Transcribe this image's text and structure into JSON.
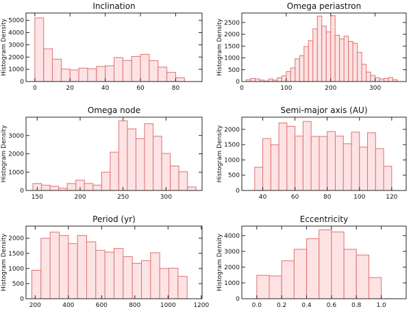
{
  "colors": {
    "bar_fill": "#fde3e3",
    "bar_edge": "#e07070"
  },
  "chart_data": [
    {
      "type": "bar",
      "title": "Inclination",
      "ylabel": "Histogram Density",
      "xlim": [
        -5,
        95
      ],
      "ylim": [
        0,
        5600
      ],
      "xticks": [
        0,
        20,
        40,
        60,
        80
      ],
      "yticks": [
        0,
        1000,
        2000,
        3000,
        4000,
        5000
      ],
      "bin_width": 5,
      "bin_starts": [
        0,
        5,
        10,
        15,
        20,
        25,
        30,
        35,
        40,
        45,
        50,
        55,
        60,
        65,
        70,
        75,
        80
      ],
      "values": [
        5200,
        2680,
        1830,
        1020,
        950,
        1100,
        1040,
        1230,
        1290,
        1960,
        1720,
        2050,
        2220,
        1720,
        1180,
        750,
        300
      ]
    },
    {
      "type": "bar",
      "title": "Omega periastron",
      "ylabel": "Histogram Density",
      "xlim": [
        0,
        370
      ],
      "ylim": [
        0,
        2900
      ],
      "xticks": [
        0,
        100,
        200,
        300
      ],
      "yticks": [
        0,
        500,
        1000,
        1500,
        2000,
        2500
      ],
      "bin_width": 10,
      "bin_starts": [
        10,
        20,
        30,
        40,
        50,
        60,
        70,
        80,
        90,
        100,
        110,
        120,
        130,
        140,
        150,
        160,
        170,
        180,
        190,
        200,
        210,
        220,
        230,
        240,
        250,
        260,
        270,
        280,
        290,
        300,
        310,
        320,
        330,
        340
      ],
      "values": [
        80,
        130,
        110,
        60,
        20,
        110,
        60,
        160,
        240,
        420,
        580,
        960,
        1100,
        1480,
        1730,
        2230,
        2770,
        2350,
        2100,
        2790,
        1960,
        1800,
        1920,
        1700,
        1620,
        1240,
        730,
        400,
        260,
        160,
        110,
        130,
        170,
        80
      ]
    },
    {
      "type": "bar",
      "title": "Omega node",
      "ylabel": "Histogram Density",
      "xlim": [
        137,
        342
      ],
      "ylim": [
        0,
        4000
      ],
      "xticks": [
        150,
        200,
        250,
        300
      ],
      "yticks": [
        0,
        1000,
        2000,
        3000
      ],
      "bin_width": 10,
      "bin_starts": [
        145,
        155,
        165,
        175,
        185,
        195,
        205,
        215,
        225,
        235,
        245,
        255,
        265,
        275,
        285,
        295,
        305,
        315,
        325
      ],
      "values": [
        380,
        290,
        230,
        120,
        380,
        560,
        380,
        290,
        1000,
        2090,
        3800,
        3360,
        2830,
        3640,
        2960,
        2020,
        1340,
        1020,
        190
      ]
    },
    {
      "type": "bar",
      "title": "Semi-major axis (AU)",
      "ylabel": "Histogram Density",
      "xlim": [
        27,
        129
      ],
      "ylim": [
        0,
        2400
      ],
      "xticks": [
        40,
        60,
        80,
        100,
        120
      ],
      "yticks": [
        0,
        500,
        1000,
        1500,
        2000
      ],
      "bin_width": 5,
      "bin_starts": [
        35,
        40,
        45,
        50,
        55,
        60,
        65,
        70,
        75,
        80,
        85,
        90,
        95,
        100,
        105,
        110,
        115
      ],
      "values": [
        760,
        1700,
        1500,
        2210,
        2100,
        1780,
        2260,
        1770,
        1770,
        1930,
        1780,
        1530,
        1910,
        1420,
        1890,
        1370,
        790
      ]
    },
    {
      "type": "bar",
      "title": "Period (yr)",
      "ylabel": "Histogram Density",
      "xlim": [
        145,
        1205
      ],
      "ylim": [
        0,
        2400
      ],
      "xticks": [
        200,
        400,
        600,
        800,
        1000,
        1200
      ],
      "yticks": [
        0,
        500,
        1000,
        1500,
        2000
      ],
      "bin_width": 55,
      "bin_starts": [
        180,
        235,
        290,
        345,
        400,
        455,
        510,
        565,
        620,
        675,
        730,
        785,
        840,
        895,
        950,
        1005,
        1060
      ],
      "values": [
        940,
        2000,
        2200,
        2090,
        1820,
        2090,
        1880,
        1600,
        1540,
        1660,
        1390,
        1170,
        1260,
        1520,
        1000,
        1010,
        740
      ]
    },
    {
      "type": "bar",
      "title": "Eccentricity",
      "ylabel": "Histogram Density",
      "xlim": [
        -0.12,
        1.2
      ],
      "ylim": [
        0,
        4600
      ],
      "xticks": [
        0.0,
        0.2,
        0.4,
        0.6,
        0.8,
        1.0
      ],
      "xtick_labels": [
        "0.0",
        "0.2",
        "0.4",
        "0.6",
        "0.8",
        "1.0"
      ],
      "yticks": [
        0,
        1000,
        2000,
        3000,
        4000
      ],
      "bin_width": 0.1,
      "bin_starts": [
        0.0,
        0.1,
        0.2,
        0.3,
        0.4,
        0.5,
        0.6,
        0.7,
        0.8,
        0.9
      ],
      "values": [
        1480,
        1440,
        2400,
        3130,
        3800,
        4360,
        4230,
        3130,
        2770,
        1340
      ]
    }
  ]
}
